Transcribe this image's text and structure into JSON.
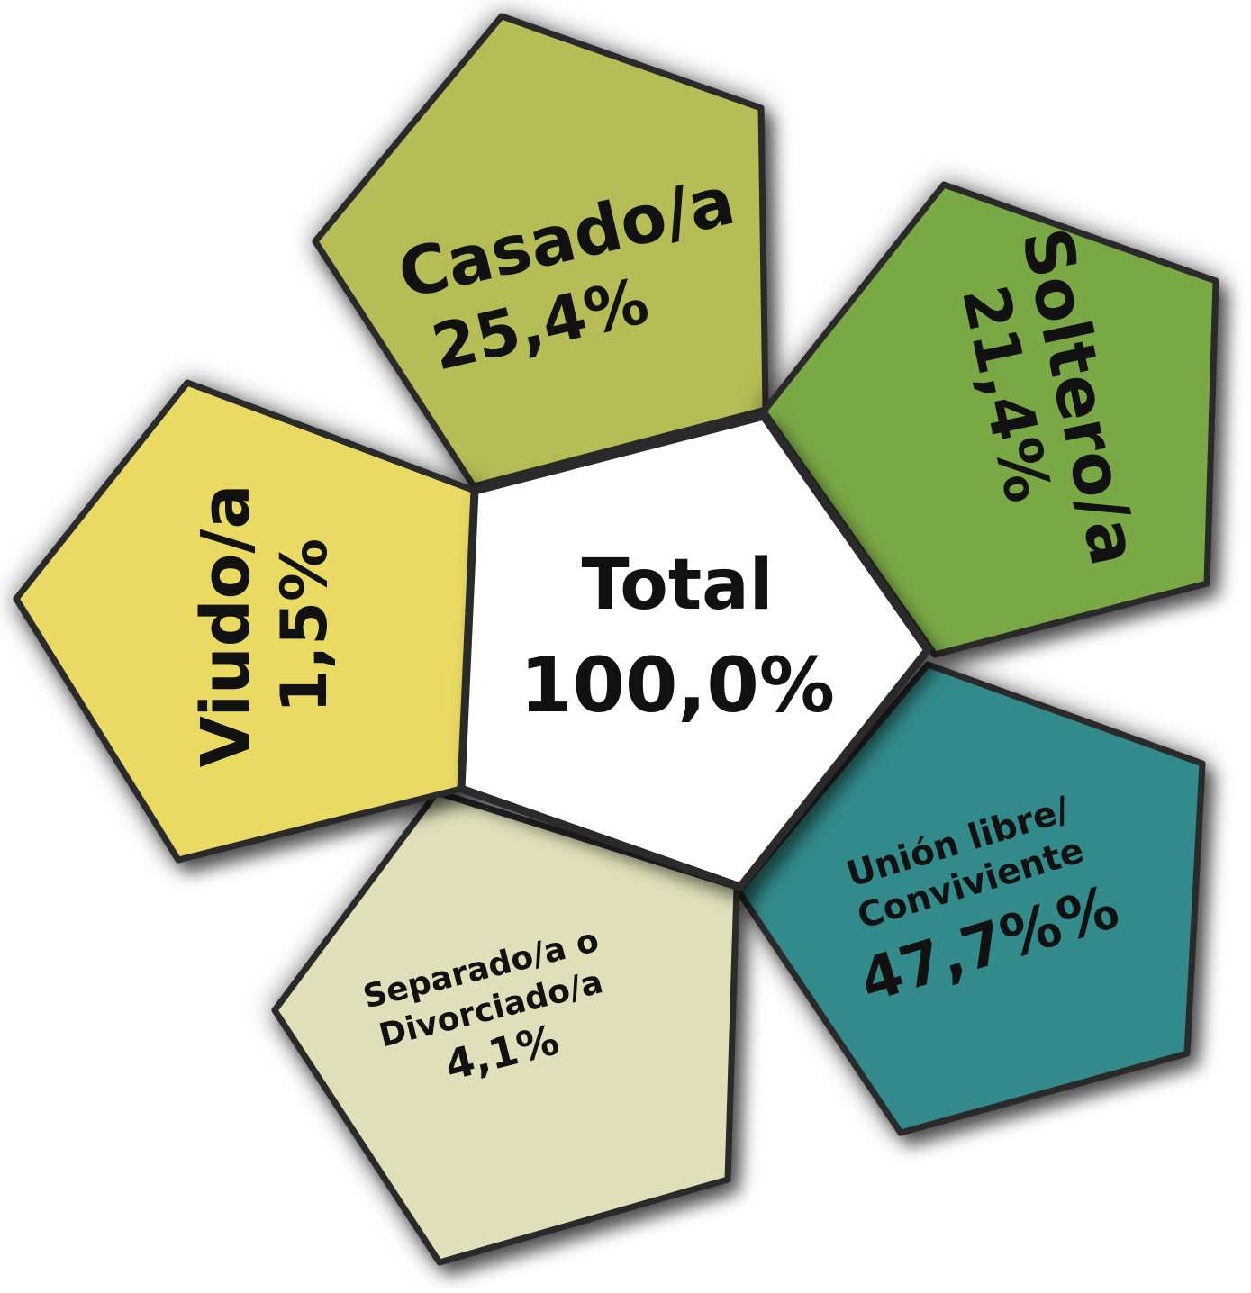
{
  "center": {
    "label": "Total",
    "value": "100,0%"
  },
  "segments": [
    {
      "id": "casado",
      "lines": [
        "Casado/a",
        "25,4%"
      ],
      "color": "#b6bd57"
    },
    {
      "id": "soltero",
      "lines": [
        "Soltero/a",
        "21,4%"
      ],
      "color": "#7aa844"
    },
    {
      "id": "union",
      "lines": [
        "Unión libre/",
        "Conviviente",
        "47,7%%"
      ],
      "color": "#318a8a"
    },
    {
      "id": "separado",
      "lines": [
        "Separado/a o",
        "Divorciado/a",
        "4,1%"
      ],
      "color": "#dfe0b9"
    },
    {
      "id": "viudo",
      "lines": [
        "Viudo/a",
        "1,5%"
      ],
      "color": "#e8da63"
    }
  ],
  "colors": {
    "outline": "#2a2a2a",
    "center_fill": "#ffffff"
  }
}
